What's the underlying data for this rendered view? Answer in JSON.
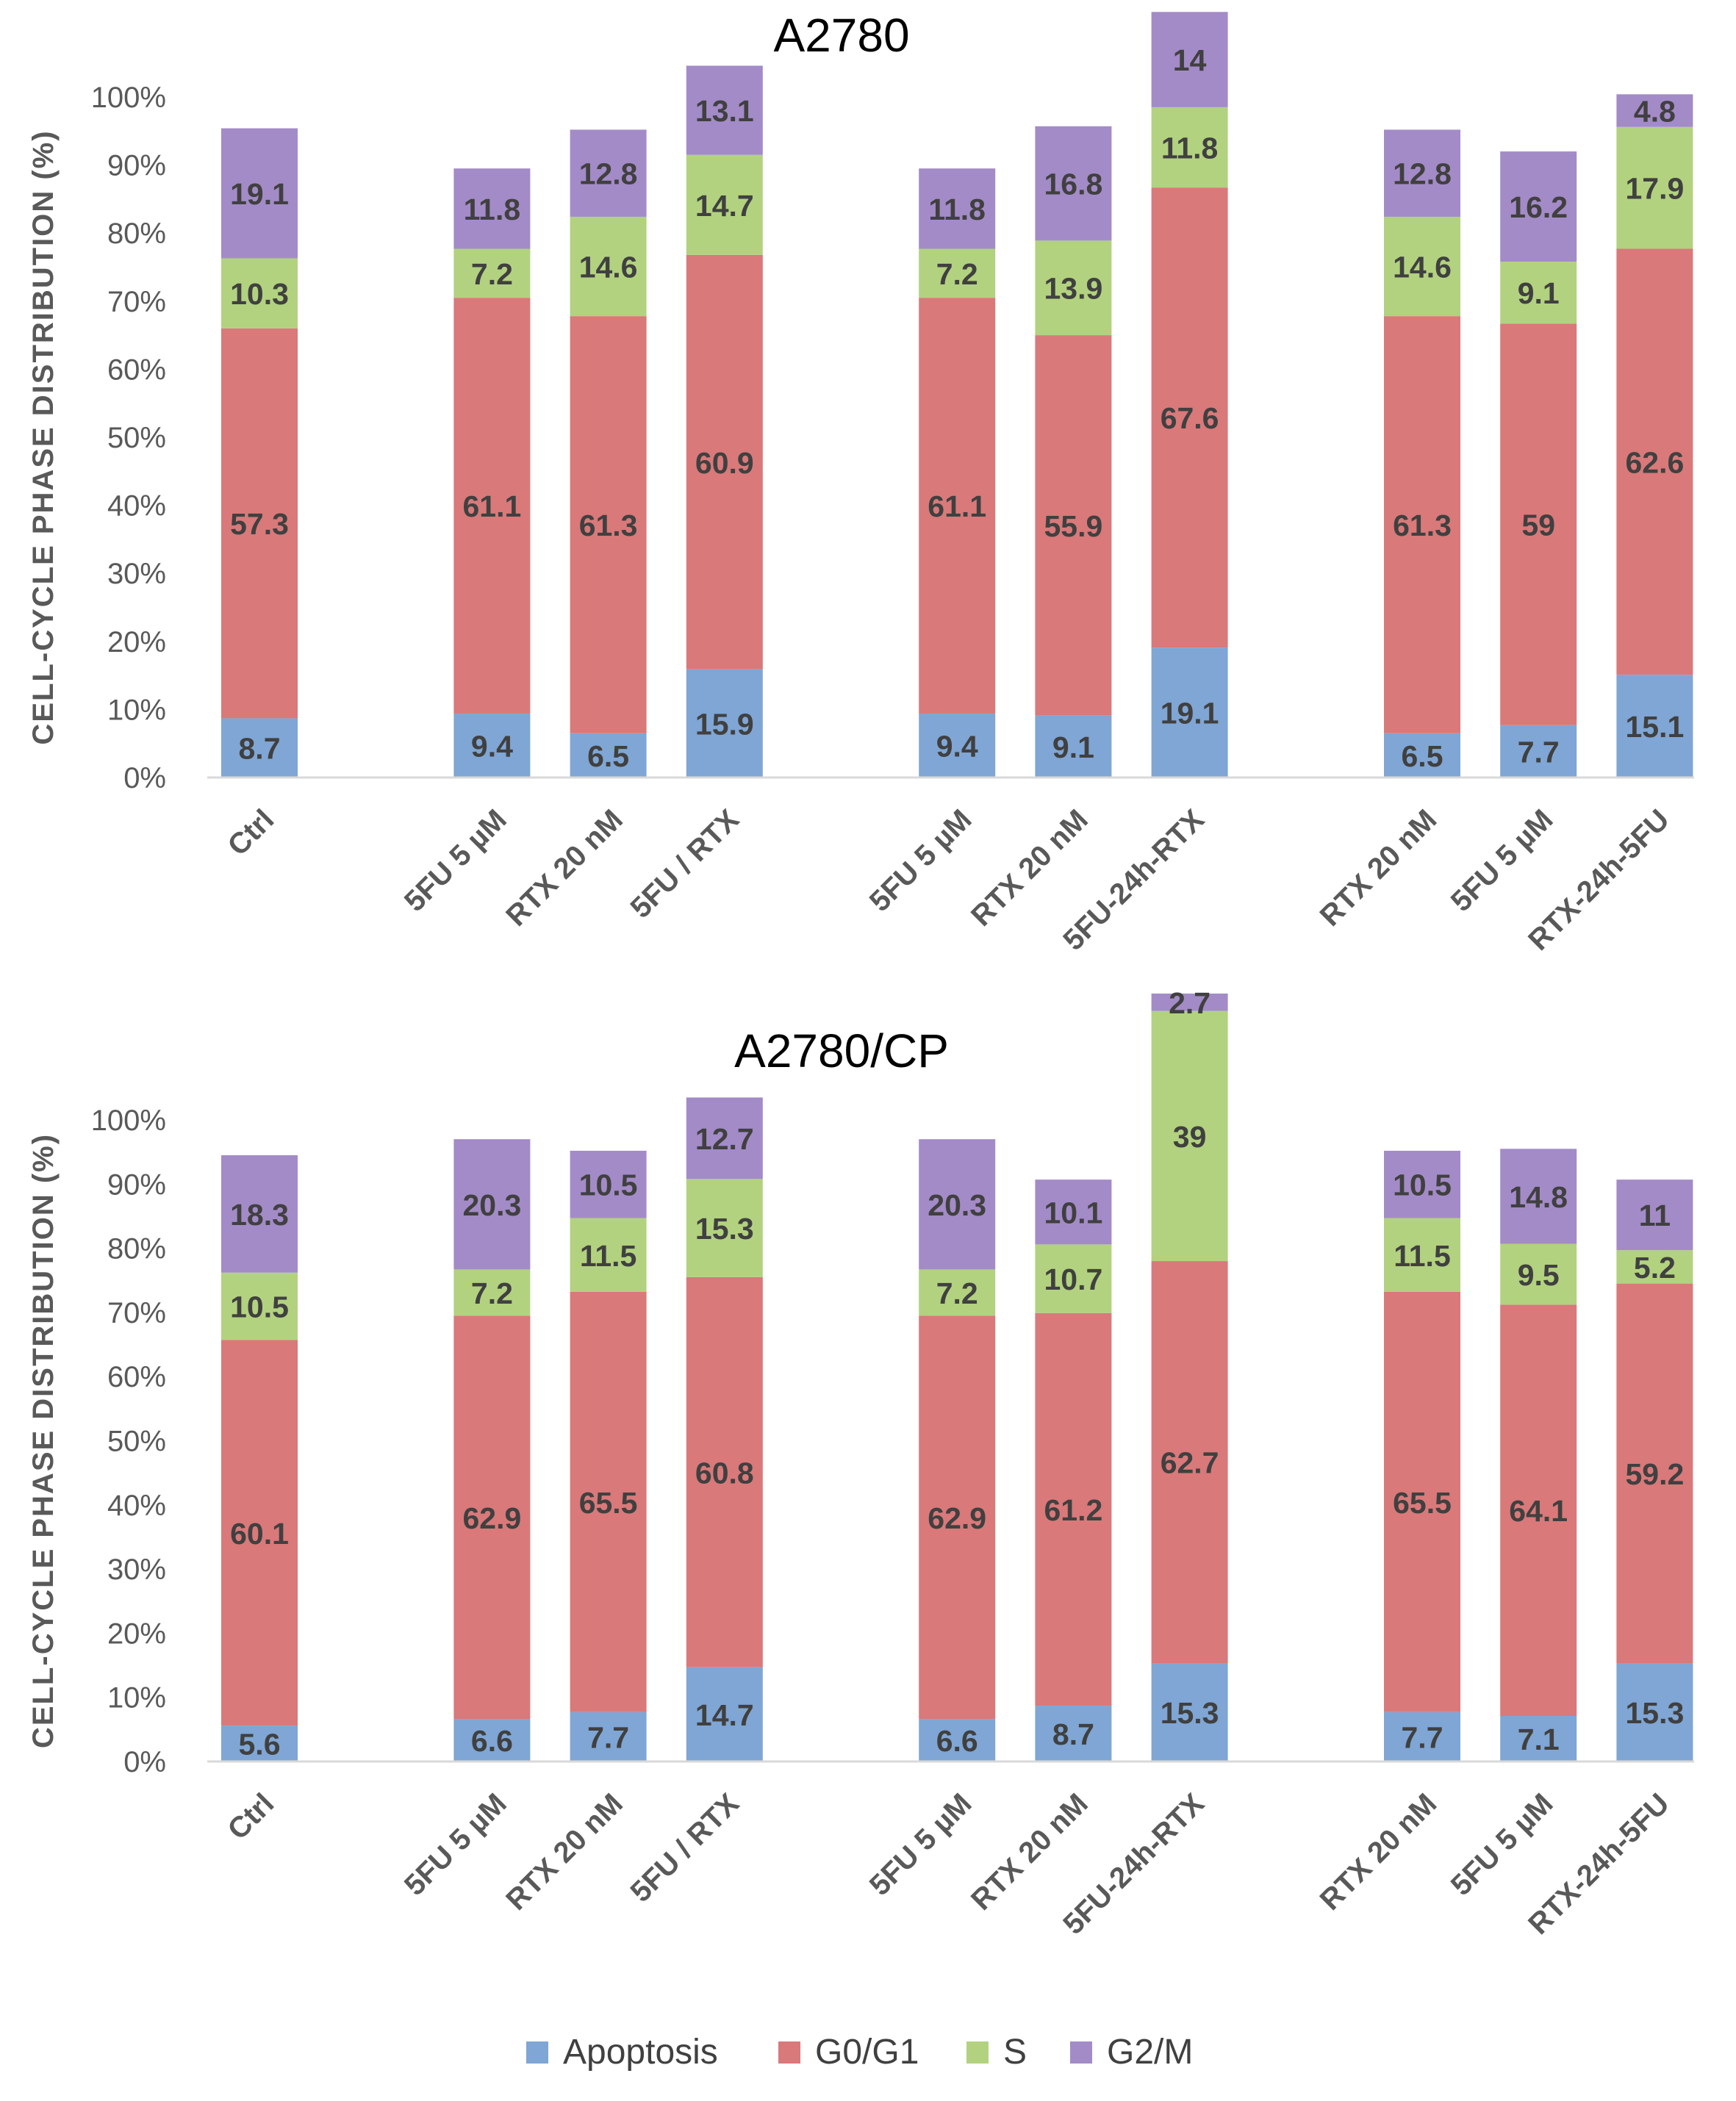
{
  "colors": {
    "Apoptosis": "#7fa6d4",
    "G0/G1": "#d9797a",
    "S": "#b2d27f",
    "G2/M": "#a38bc7",
    "axis": "#d9d9d9",
    "text": "#595959"
  },
  "legend": [
    "Apoptosis",
    "G0/G1",
    "S",
    "G2/M"
  ],
  "chart_data": [
    {
      "type": "bar",
      "stacked": "percent",
      "title": "A2780",
      "ylabel": "CELL-CYCLE PHASE DISTRIBUTION (%)",
      "xlabel": "",
      "ylim": [
        0,
        100
      ],
      "yticks": [
        "0%",
        "10%",
        "20%",
        "30%",
        "40%",
        "50%",
        "60%",
        "70%",
        "80%",
        "90%",
        "100%"
      ],
      "categories": [
        "Ctrl",
        "",
        "5FU 5 µM",
        "RTX 20 nM",
        "5FU / RTX",
        "",
        "5FU 5 µM",
        "RTX 20 nM",
        "5FU-24h-RTX",
        "",
        "RTX 20 nM",
        "5FU 5 µM",
        "RTX-24h-5FU"
      ],
      "series": [
        {
          "name": "Apoptosis",
          "values": [
            8.7,
            null,
            9.4,
            6.5,
            15.9,
            null,
            9.4,
            9.1,
            19.1,
            null,
            6.5,
            7.7,
            15.1
          ]
        },
        {
          "name": "G0/G1",
          "values": [
            57.3,
            null,
            61.1,
            61.3,
            60.9,
            null,
            61.1,
            55.9,
            67.6,
            null,
            61.3,
            59,
            62.6
          ]
        },
        {
          "name": "S",
          "values": [
            10.3,
            null,
            7.2,
            14.6,
            14.7,
            null,
            7.2,
            13.9,
            11.8,
            null,
            14.6,
            9.1,
            17.9
          ]
        },
        {
          "name": "G2/M",
          "values": [
            19.1,
            null,
            11.8,
            12.8,
            13.1,
            null,
            11.8,
            16.8,
            14,
            null,
            12.8,
            16.2,
            4.8
          ]
        }
      ]
    },
    {
      "type": "bar",
      "stacked": "percent",
      "title": "A2780/CP",
      "ylabel": "CELL-CYCLE PHASE DISTRIBUTION (%)",
      "xlabel": "",
      "ylim": [
        0,
        100
      ],
      "yticks": [
        "0%",
        "10%",
        "20%",
        "30%",
        "40%",
        "50%",
        "60%",
        "70%",
        "80%",
        "90%",
        "100%"
      ],
      "categories": [
        "Ctrl",
        "",
        "5FU 5 µM",
        "RTX 20 nM",
        "5FU / RTX",
        "",
        "5FU 5 µM",
        "RTX 20 nM",
        "5FU-24h-RTX",
        "",
        "RTX 20 nM",
        "5FU 5 µM",
        "RTX-24h-5FU"
      ],
      "series": [
        {
          "name": "Apoptosis",
          "values": [
            5.6,
            null,
            6.6,
            7.7,
            14.7,
            null,
            6.6,
            8.7,
            15.3,
            null,
            7.7,
            7.1,
            15.3
          ]
        },
        {
          "name": "G0/G1",
          "values": [
            60.1,
            null,
            62.9,
            65.5,
            60.8,
            null,
            62.9,
            61.2,
            62.7,
            null,
            65.5,
            64.1,
            59.2
          ]
        },
        {
          "name": "S",
          "values": [
            10.5,
            null,
            7.2,
            11.5,
            15.3,
            null,
            7.2,
            10.7,
            39,
            null,
            11.5,
            9.5,
            5.2
          ]
        },
        {
          "name": "G2/M",
          "values": [
            18.3,
            null,
            20.3,
            10.5,
            12.7,
            null,
            20.3,
            10.1,
            2.7,
            null,
            10.5,
            14.8,
            11
          ]
        }
      ]
    }
  ]
}
